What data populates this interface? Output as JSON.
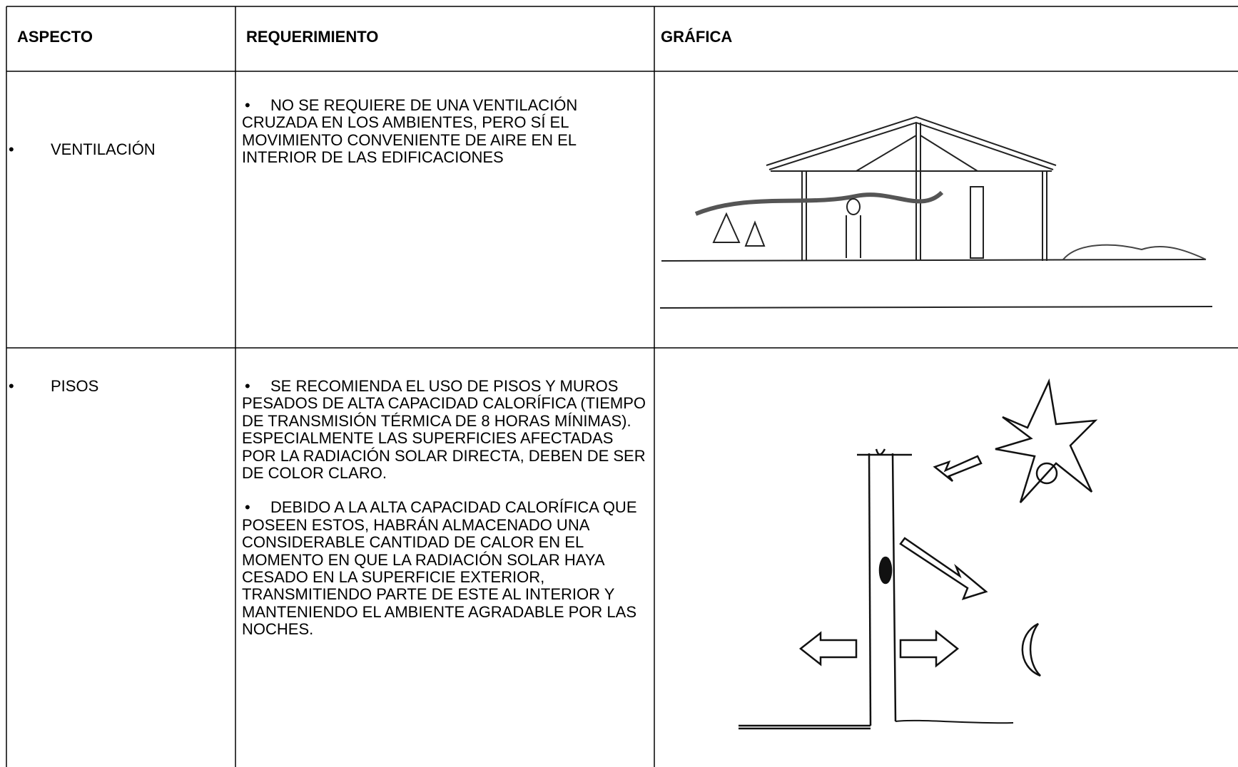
{
  "table": {
    "header": [
      "ASPECTO",
      "REQUERIMIENTO",
      "GRÁFICA"
    ],
    "rows": [
      {
        "aspect": "VENTILACIÓN",
        "requirements": [
          "NO SE REQUIERE DE UNA VENTILACIÓN CRUZADA EN LOS AMBIENTES, PERO SÍ EL MOVIMIENTO CONVENIENTE DE AIRE EN EL INTERIOR DE LAS EDIFICACIONES"
        ]
      },
      {
        "aspect": "PISOS",
        "requirements": [
          "SE RECOMIENDA EL USO DE PISOS Y MUROS PESADOS DE ALTA CAPACIDAD CALORÍFICA (TIEMPO DE TRANSMISIÓN TÉRMICA DE 8 HORAS MÍNIMAS). ESPECIALMENTE LAS SUPERFICIES AFECTADAS POR LA RADIACIÓN SOLAR DIRECTA, DEBEN DE SER  DE COLOR CLARO.",
          "DEBIDO A LA ALTA CAPACIDAD CALORÍFICA QUE POSEEN ESTOS, HABRÁN ALMACENADO UNA CONSIDERABLE CANTIDAD DE CALOR EN EL MOMENTO EN QUE LA RADIACIÓN SOLAR HAYA CESADO EN LA SUPERFICIE EXTERIOR, TRANSMITIENDO PARTE DE ESTE AL INTERIOR Y MANTENIENDO EL AMBIENTE AGRADABLE POR LAS NOCHES."
        ]
      }
    ]
  }
}
